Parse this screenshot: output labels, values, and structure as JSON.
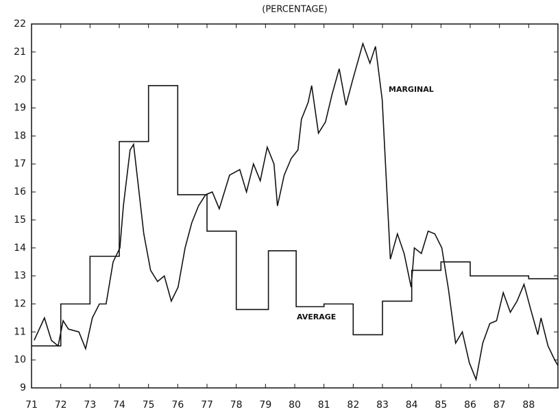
{
  "chart_data": {
    "type": "line",
    "title": "(PERCENTAGE)",
    "annotations": [
      "MARGINAL",
      "AVERAGE"
    ],
    "xlim": [
      71,
      89
    ],
    "xticks": [
      71,
      72,
      73,
      74,
      75,
      76,
      77,
      78,
      79,
      80,
      81,
      82,
      83,
      84,
      85,
      86,
      87,
      88
    ],
    "ylim": [
      9,
      22
    ],
    "yticks": [
      9,
      10,
      11,
      12,
      13,
      14,
      15,
      16,
      17,
      18,
      19,
      20,
      21,
      22
    ],
    "grid": false,
    "series": [
      {
        "name": "MARGINAL",
        "color": "#111111",
        "x": [
          71.09,
          71.44,
          71.68,
          71.91,
          72.08,
          72.26,
          72.62,
          72.85,
          73.08,
          73.32,
          73.55,
          73.79,
          74.02,
          74.14,
          74.37,
          74.49,
          74.84,
          75.07,
          75.31,
          75.54,
          75.78,
          76.01,
          76.25,
          76.48,
          76.71,
          76.95,
          77.18,
          77.42,
          77.77,
          78.12,
          78.35,
          78.59,
          78.82,
          79.06,
          79.29,
          79.41,
          79.64,
          79.88,
          80.11,
          80.23,
          80.46,
          80.58,
          80.81,
          81.05,
          81.28,
          81.52,
          81.75,
          81.98,
          82.33,
          82.57,
          82.76,
          82.99,
          83.27,
          83.51,
          83.74,
          83.98,
          84.09,
          84.33,
          84.56,
          84.79,
          85.03,
          85.26,
          85.5,
          85.73,
          85.97,
          86.2,
          86.43,
          86.67,
          86.9,
          87.13,
          87.37,
          87.6,
          87.84,
          88.07,
          88.31,
          88.42,
          88.66,
          88.89,
          89.0
        ],
        "values": [
          10.7,
          11.5,
          10.7,
          10.5,
          11.4,
          11.1,
          11.0,
          10.4,
          11.5,
          12.0,
          12.0,
          13.5,
          14.0,
          15.5,
          17.5,
          17.7,
          14.5,
          13.2,
          12.8,
          13.0,
          12.1,
          12.6,
          14.0,
          14.9,
          15.5,
          15.9,
          16.0,
          15.4,
          16.6,
          16.8,
          16.0,
          17.0,
          16.4,
          17.6,
          17.0,
          15.5,
          16.6,
          17.2,
          17.5,
          18.6,
          19.2,
          19.8,
          18.1,
          18.5,
          19.5,
          20.4,
          19.1,
          20.0,
          21.3,
          20.6,
          21.2,
          19.3,
          13.6,
          14.5,
          13.8,
          12.6,
          14.0,
          13.8,
          14.6,
          14.5,
          14.0,
          12.5,
          10.6,
          11.0,
          9.9,
          9.3,
          10.6,
          11.3,
          11.4,
          12.4,
          11.7,
          12.1,
          12.7,
          11.8,
          10.9,
          11.5,
          10.5,
          10.0,
          9.8
        ]
      },
      {
        "name": "AVERAGE",
        "color": "#111111",
        "x": [
          71,
          72,
          72,
          73,
          73,
          74,
          74,
          75,
          75,
          76,
          76,
          77,
          77,
          78,
          78,
          79.1,
          79.1,
          80.05,
          80.05,
          81,
          81,
          82,
          82,
          83,
          83,
          84,
          84,
          85,
          85,
          86,
          86,
          88,
          88,
          89
        ],
        "values": [
          10.5,
          10.5,
          12.0,
          12.0,
          13.7,
          13.7,
          17.8,
          17.8,
          19.8,
          19.8,
          15.9,
          15.9,
          14.6,
          14.6,
          11.8,
          11.8,
          13.9,
          13.9,
          11.9,
          11.9,
          12.0,
          12.0,
          10.9,
          10.9,
          12.1,
          12.1,
          13.2,
          13.2,
          13.5,
          13.5,
          13.0,
          13.0,
          12.9,
          12.9
        ]
      }
    ]
  }
}
